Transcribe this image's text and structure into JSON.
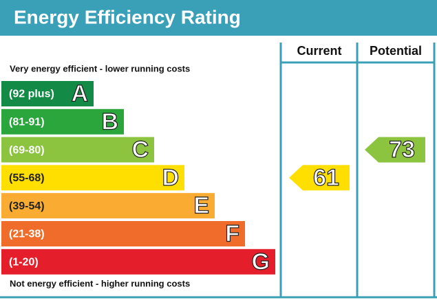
{
  "header": {
    "title": "Energy Efficiency Rating"
  },
  "columns": {
    "current": "Current",
    "potential": "Potential"
  },
  "top_note": "Very energy efficient - lower running costs",
  "bottom_note": "Not energy efficient - higher running costs",
  "bands": [
    {
      "range": "(92 plus)",
      "letter": "A",
      "color": "#138a45"
    },
    {
      "range": "(81-91)",
      "letter": "B",
      "color": "#2aa63d"
    },
    {
      "range": "(69-80)",
      "letter": "C",
      "color": "#8cc43f"
    },
    {
      "range": "(55-68)",
      "letter": "D",
      "color": "#ffdf00"
    },
    {
      "range": "(39-54)",
      "letter": "E",
      "color": "#f9ab32"
    },
    {
      "range": "(21-38)",
      "letter": "F",
      "color": "#ef6c2a"
    },
    {
      "range": "(1-20)",
      "letter": "G",
      "color": "#e41e2a"
    }
  ],
  "current": {
    "value": "61",
    "band": "D"
  },
  "potential": {
    "value": "73",
    "band": "C"
  }
}
